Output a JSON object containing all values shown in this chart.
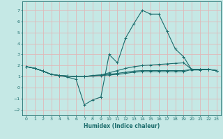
{
  "xlabel": "Humidex (Indice chaleur)",
  "ylabel": "",
  "xlim": [
    -0.5,
    23.5
  ],
  "ylim": [
    -2.5,
    7.8
  ],
  "yticks": [
    -2,
    -1,
    0,
    1,
    2,
    3,
    4,
    5,
    6,
    7
  ],
  "xticks": [
    0,
    1,
    2,
    3,
    4,
    5,
    6,
    7,
    8,
    9,
    10,
    11,
    12,
    13,
    14,
    15,
    16,
    17,
    18,
    19,
    20,
    21,
    22,
    23
  ],
  "background_color": "#c5e8e5",
  "grid_color": "#e0b8b8",
  "line_color": "#1a6b6b",
  "series": {
    "main_peak": {
      "x": [
        0,
        1,
        2,
        3,
        4,
        5,
        6,
        7,
        8,
        9,
        10,
        11,
        12,
        13,
        14,
        15,
        16,
        17,
        18,
        19,
        20,
        21,
        22,
        23
      ],
      "y": [
        1.9,
        1.75,
        1.5,
        1.2,
        1.1,
        0.95,
        0.75,
        -1.55,
        -1.1,
        -0.85,
        3.0,
        2.25,
        4.5,
        5.8,
        7.0,
        6.65,
        6.65,
        5.1,
        3.5,
        2.8,
        1.6,
        1.6,
        1.65,
        1.55
      ]
    },
    "flat_top": {
      "x": [
        0,
        1,
        2,
        3,
        4,
        5,
        6,
        7,
        8,
        9,
        10,
        11,
        12,
        13,
        14,
        15,
        16,
        17,
        18,
        19,
        20,
        21,
        22,
        23
      ],
      "y": [
        1.9,
        1.75,
        1.5,
        1.2,
        1.1,
        1.05,
        1.0,
        1.0,
        1.1,
        1.15,
        1.35,
        1.55,
        1.75,
        1.9,
        2.0,
        2.05,
        2.1,
        2.15,
        2.2,
        2.25,
        1.65,
        1.65,
        1.65,
        1.55
      ]
    },
    "flat_mid": {
      "x": [
        0,
        1,
        2,
        3,
        4,
        5,
        6,
        7,
        8,
        9,
        10,
        11,
        12,
        13,
        14,
        15,
        16,
        17,
        18,
        19,
        20,
        21,
        22,
        23
      ],
      "y": [
        1.9,
        1.75,
        1.5,
        1.2,
        1.1,
        1.05,
        1.0,
        1.0,
        1.1,
        1.15,
        1.2,
        1.3,
        1.4,
        1.5,
        1.55,
        1.55,
        1.55,
        1.55,
        1.55,
        1.55,
        1.65,
        1.65,
        1.65,
        1.55
      ]
    },
    "flat_low": {
      "x": [
        0,
        1,
        2,
        3,
        4,
        5,
        6,
        7,
        8,
        9,
        10,
        11,
        12,
        13,
        14,
        15,
        16,
        17,
        18,
        19,
        20,
        21,
        22,
        23
      ],
      "y": [
        1.9,
        1.75,
        1.5,
        1.2,
        1.1,
        1.05,
        1.0,
        1.0,
        1.05,
        1.1,
        1.15,
        1.2,
        1.3,
        1.4,
        1.45,
        1.45,
        1.45,
        1.45,
        1.45,
        1.45,
        1.65,
        1.65,
        1.65,
        1.55
      ]
    }
  }
}
